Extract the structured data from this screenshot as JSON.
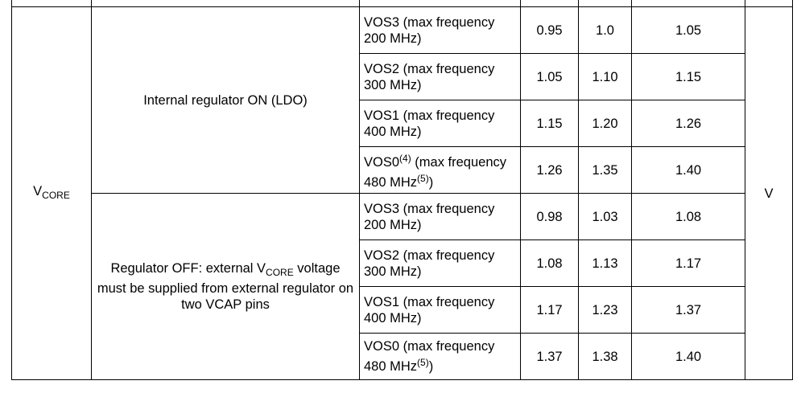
{
  "table": {
    "symbol": [
      {
        "text": "V"
      },
      {
        "sub": "CORE"
      }
    ],
    "unit": [
      {
        "text": "V"
      }
    ],
    "groups": [
      {
        "condition": [
          {
            "text": "Internal regulator ON (LDO)"
          }
        ],
        "rows": [
          {
            "mode": [
              {
                "text": "VOS3 (max frequency 200 MHz)"
              }
            ],
            "min": "0.95",
            "typ": "1.0",
            "max": "1.05"
          },
          {
            "mode": [
              {
                "text": "VOS2 (max frequency 300 MHz)"
              }
            ],
            "min": "1.05",
            "typ": "1.10",
            "max": "1.15"
          },
          {
            "mode": [
              {
                "text": "VOS1 (max frequency 400 MHz)"
              }
            ],
            "min": "1.15",
            "typ": "1.20",
            "max": "1.26"
          },
          {
            "mode": [
              {
                "text": "VOS0"
              },
              {
                "sup": "(4)"
              },
              {
                "text": " (max frequency 480 MHz"
              },
              {
                "sup": "(5)"
              },
              {
                "text": ")"
              }
            ],
            "min": "1.26",
            "typ": "1.35",
            "max": "1.40"
          }
        ]
      },
      {
        "condition": [
          {
            "text": "Regulator OFF: external V"
          },
          {
            "sub": "CORE"
          },
          {
            "text": " voltage must be supplied from external regulator on two VCAP pins"
          }
        ],
        "rows": [
          {
            "mode": [
              {
                "text": "VOS3 (max frequency 200 MHz)"
              }
            ],
            "min": "0.98",
            "typ": "1.03",
            "max": "1.08"
          },
          {
            "mode": [
              {
                "text": "VOS2 (max frequency 300 MHz)"
              }
            ],
            "min": "1.08",
            "typ": "1.13",
            "max": "1.17"
          },
          {
            "mode": [
              {
                "text": "VOS1 (max frequency 400 MHz)"
              }
            ],
            "min": "1.17",
            "typ": "1.23",
            "max": "1.37"
          },
          {
            "mode": [
              {
                "text": "VOS0 (max frequency 480 MHz"
              },
              {
                "sup": "(5)"
              },
              {
                "text": ")"
              }
            ],
            "min": "1.37",
            "typ": "1.38",
            "max": "1.40"
          }
        ]
      }
    ]
  }
}
